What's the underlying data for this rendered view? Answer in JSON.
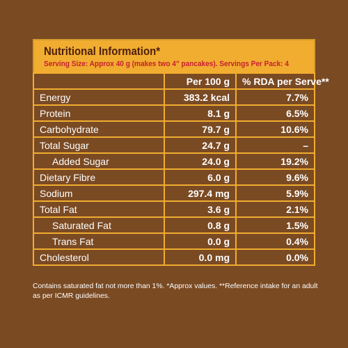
{
  "panel": {
    "title": "Nutritional Information*",
    "serving": "Serving Size: Approx 40 g (makes two 4\" pancakes). Servings Per Pack: 4"
  },
  "table": {
    "headers": [
      "",
      "Per 100 g",
      "% RDA per Serve**"
    ],
    "rows": [
      {
        "nutrient": "Energy",
        "per100": "383.2 kcal",
        "rda": "7.7%",
        "indent": false
      },
      {
        "nutrient": "Protein",
        "per100": "8.1 g",
        "rda": "6.5%",
        "indent": false
      },
      {
        "nutrient": "Carbohydrate",
        "per100": "79.7 g",
        "rda": "10.6%",
        "indent": false
      },
      {
        "nutrient": "Total Sugar",
        "per100": "24.7 g",
        "rda": "–",
        "indent": false
      },
      {
        "nutrient": "Added Sugar",
        "per100": "24.0 g",
        "rda": "19.2%",
        "indent": true
      },
      {
        "nutrient": "Dietary Fibre",
        "per100": "6.0 g",
        "rda": "9.6%",
        "indent": false
      },
      {
        "nutrient": "Sodium",
        "per100": "297.4 mg",
        "rda": "5.9%",
        "indent": false
      },
      {
        "nutrient": "Total Fat",
        "per100": "3.6 g",
        "rda": "2.1%",
        "indent": false
      },
      {
        "nutrient": "Saturated Fat",
        "per100": "0.8 g",
        "rda": "1.5%",
        "indent": true
      },
      {
        "nutrient": "Trans Fat",
        "per100": "0.0 g",
        "rda": "0.4%",
        "indent": true
      },
      {
        "nutrient": "Cholesterol",
        "per100": "0.0 mg",
        "rda": "0.0%",
        "indent": false
      }
    ]
  },
  "footnote": "Contains saturated fat not more than 1%. *Approx values. **Reference intake for an adult as per ICMR guidelines.",
  "colors": {
    "background": "#7a4a23",
    "header_bg": "#f1ad30",
    "title": "#4e1f0c",
    "serving": "#c7202f",
    "grid": "#f1ad30"
  }
}
